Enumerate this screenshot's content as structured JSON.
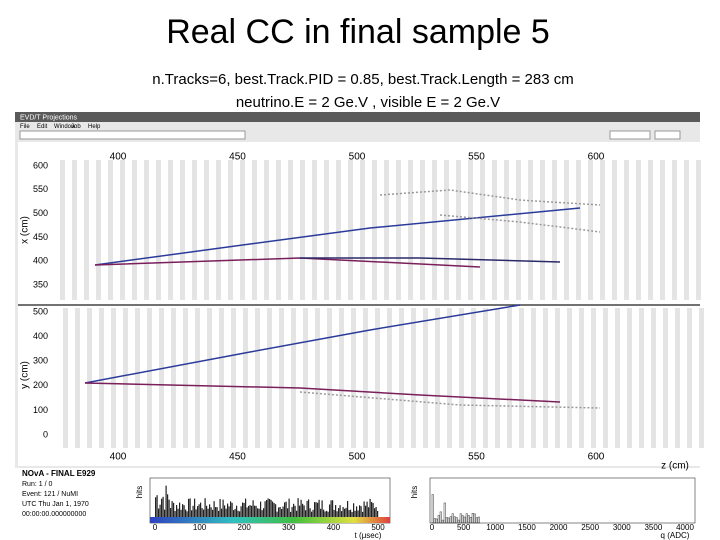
{
  "slide": {
    "title": "Real CC in final sample 5",
    "subtitle_lines": [
      "n.Tracks=6, best.Track.PID = 0.85, best.Track.Length = 283 cm",
      "neutrino.E = 2 Ge.V , visible E = 2 Ge.V"
    ]
  },
  "window": {
    "title": "EVD/T Projections",
    "menu": [
      "File",
      "Edit",
      "Window",
      "Job",
      "Help"
    ]
  },
  "display": {
    "z_ticks": [
      400,
      450,
      500,
      550,
      600
    ],
    "z_label": "z (cm)",
    "x_label": "x (cm)",
    "x_ticks": [
      600,
      550,
      500,
      450,
      400,
      350
    ],
    "y_label": "y (cm)",
    "y_ticks": [
      500,
      400,
      300,
      200,
      100,
      0
    ]
  },
  "info": {
    "lines": [
      "NOvA - FINAL E929",
      "Run: 1 / 0",
      "Event: 121 / NuMI",
      "UTC Thu Jan 1, 1970",
      "00:00:00.000000000"
    ]
  },
  "time_hist": {
    "y_label": "hits",
    "x_label": "t (μsec)",
    "x_ticks": [
      0,
      100,
      200,
      300,
      400,
      500
    ]
  },
  "charge_hist": {
    "y_label": "hits",
    "x_label": "q (ADC)",
    "x_ticks": [
      0,
      500,
      1000,
      1500,
      2000,
      2500,
      3000,
      3500,
      4000
    ]
  }
}
